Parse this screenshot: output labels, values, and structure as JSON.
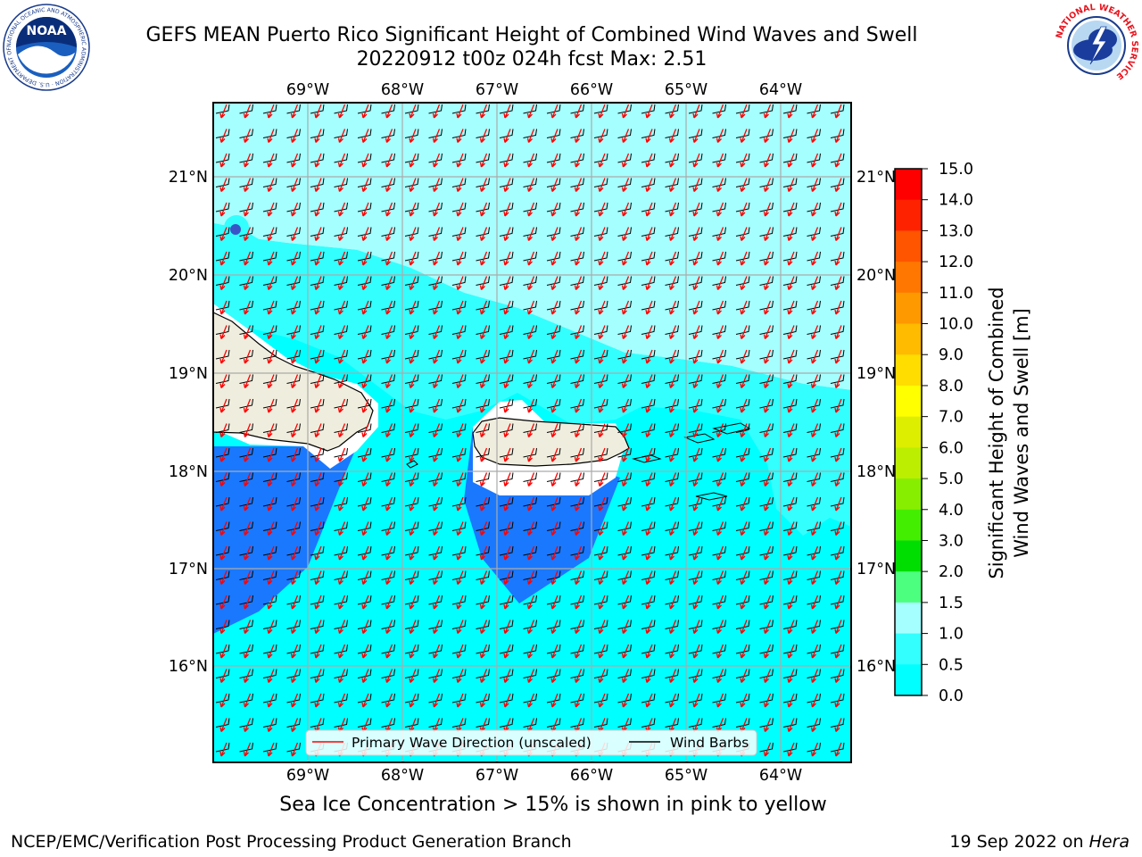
{
  "title": {
    "line1": "GEFS MEAN Puerto Rico Significant Height of Combined Wind Waves and Swell",
    "line2": "20220912 t00z 024h fcst   Max: 2.51"
  },
  "map": {
    "lon_labels": [
      "69°W",
      "68°W",
      "67°W",
      "66°W",
      "65°W",
      "64°W"
    ],
    "lat_labels": [
      "21°N",
      "20°N",
      "19°N",
      "18°N",
      "17°N",
      "16°N"
    ],
    "legend": {
      "wave_label": "Primary Wave Direction (unscaled)",
      "barb_label": "Wind Barbs",
      "wave_color": "#ff0000",
      "barb_color": "#000000"
    },
    "colors": {
      "land": "#efeddd",
      "band_0_5_1": "#1a78ff",
      "band_1_1_5": "#00ffff",
      "band_1_5_2": "#33ffff",
      "band_2_3": "#a6ffff",
      "peak": "#3a55c8"
    }
  },
  "colorbar": {
    "label_line1": "Significant Height of Combined",
    "label_line2": "Wind Waves and Swell [m]",
    "ticks": [
      "15.0",
      "14.0",
      "13.0",
      "12.0",
      "11.0",
      "10.0",
      "9.0",
      "8.0",
      "7.0",
      "6.0",
      "5.0",
      "4.0",
      "3.0",
      "2.0",
      "1.5",
      "1.0",
      "0.5",
      "0.0"
    ],
    "colors_bottom_to_top": [
      "#0000ff",
      "#1a78ff",
      "#00ffff",
      "#33ffff",
      "#a6ffff",
      "#4dff7f",
      "#00dd00",
      "#44ee00",
      "#88ee00",
      "#bbee00",
      "#ddee00",
      "#ffff00",
      "#ffdd00",
      "#ffbb00",
      "#ff9900",
      "#ff7700",
      "#ff5500",
      "#ff2200",
      "#ff0000"
    ]
  },
  "footer": {
    "sea_ice_note": "Sea Ice Concentration > 15% is shown in pink to yellow",
    "credit": "NCEP/EMC/Verification Post Processing Product Generation Branch",
    "date": "19 Sep 2022 on",
    "host": "Hera"
  },
  "logos": {
    "noaa_text": "NOAA",
    "noaa_ring": "NATIONAL OCEANIC AND ATMOSPHERIC ADMINISTRATION · U.S. DEPARTMENT OF COMMERCE",
    "nws_ring": "NATIONAL WEATHER SERVICE"
  }
}
